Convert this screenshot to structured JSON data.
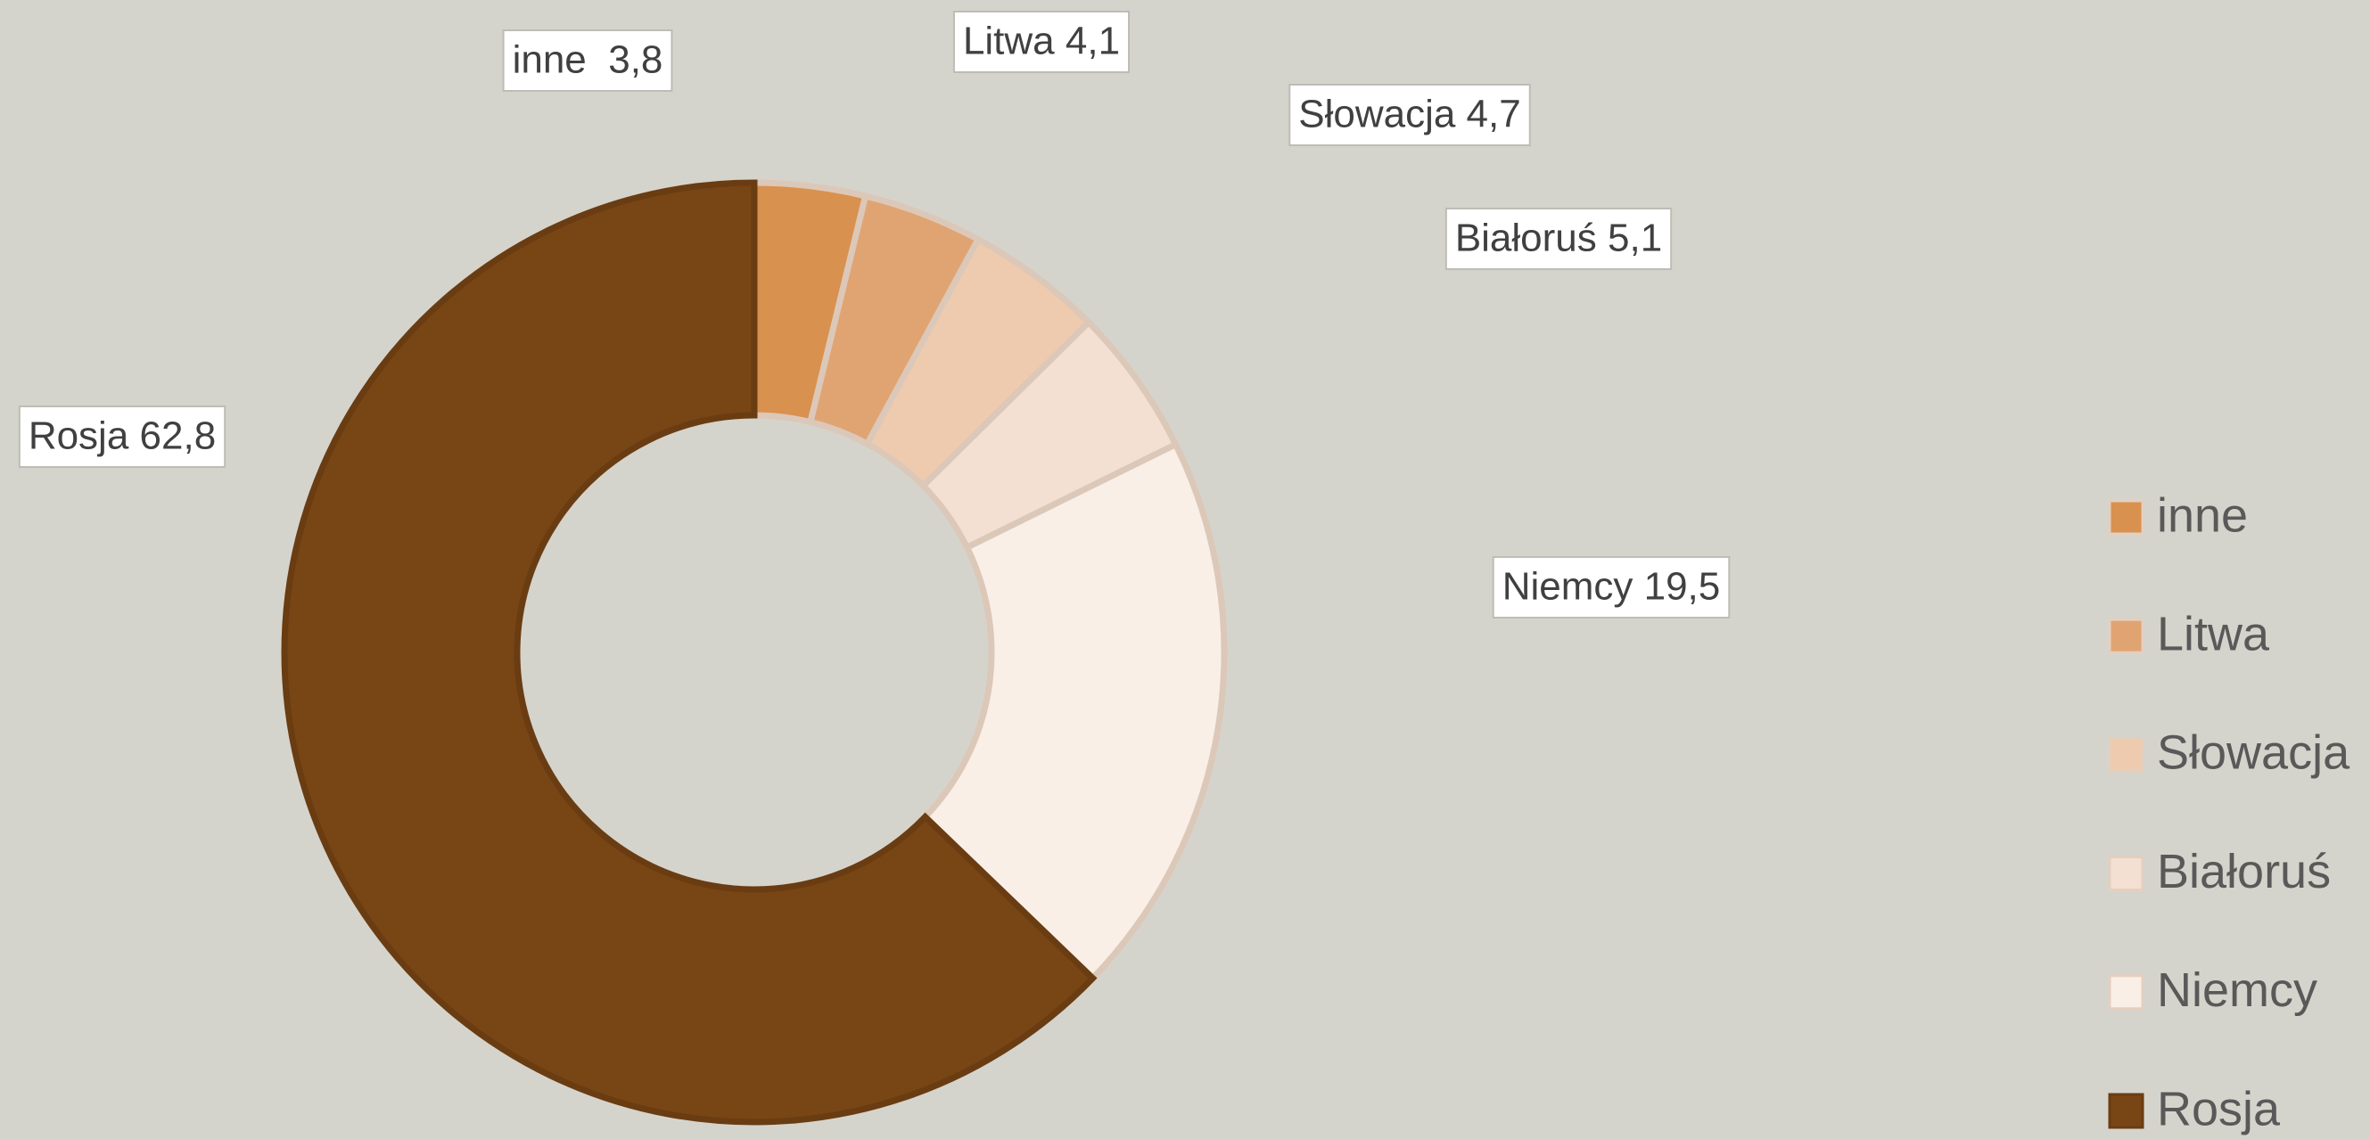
{
  "chart_data": {
    "type": "donut",
    "categories": [
      "inne",
      "Litwa",
      "Słowacja",
      "Białoruś",
      "Niemcy",
      "Rosja"
    ],
    "values": [
      3.8,
      4.1,
      4.7,
      5.1,
      19.5,
      62.8
    ],
    "value_labels": [
      "inne  3,8",
      "Litwa 4,1",
      "Słowacja 4,7",
      "Białoruś 5,1",
      "Niemcy 19,5",
      "Rosja 62,8"
    ],
    "colors": [
      "#d9914f",
      "#e0a472",
      "#eecbae",
      "#f3e0d2",
      "#f9efe7",
      "#784515"
    ],
    "legend": "right"
  }
}
